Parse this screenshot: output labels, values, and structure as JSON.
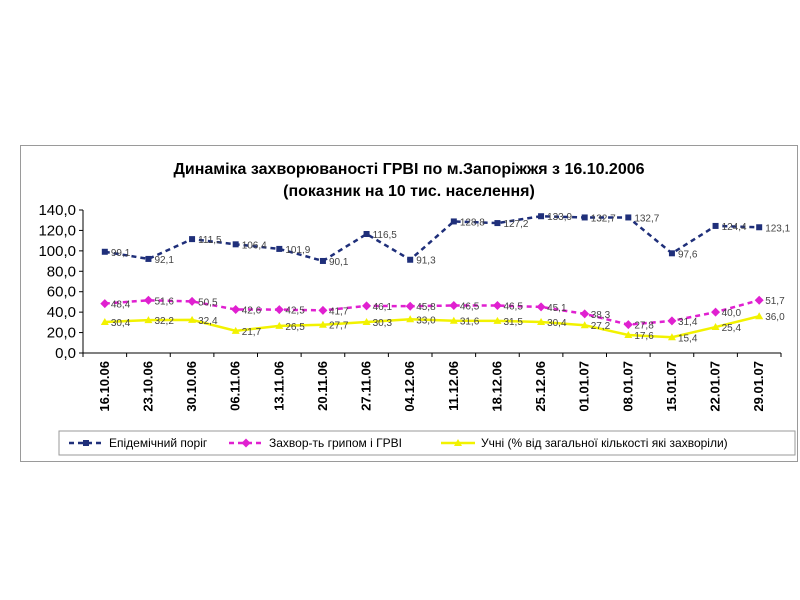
{
  "chart_data": {
    "type": "line",
    "title": "Динаміка захворюваності ГРВІ по м.Запоріжжя з 16.10.2006",
    "subtitle": "(показник на 10 тис. населення)",
    "categories": [
      "16.10.06",
      "23.10.06",
      "30.10.06",
      "06.11.06",
      "13.11.06",
      "20.11.06",
      "27.11.06",
      "04.12.06",
      "11.12.06",
      "18.12.06",
      "25.12.06",
      "01.01.07",
      "08.01.07",
      "15.01.07",
      "22.01.07",
      "29.01.07"
    ],
    "ylim": [
      0,
      140
    ],
    "yticks": [
      "0,0",
      "20,0",
      "40,0",
      "60,0",
      "80,0",
      "100,0",
      "120,0",
      "140,0"
    ],
    "legend_position": "bottom",
    "series": [
      {
        "name": "Епідемічний поріг",
        "color": "#1f2f7a",
        "style": "dashed",
        "marker": "square",
        "values": [
          99.1,
          92.1,
          111.5,
          106.4,
          101.9,
          90.1,
          116.5,
          91.3,
          128.8,
          127.2,
          133.9,
          132.7,
          132.7,
          97.6,
          124.4,
          123.1
        ],
        "labels": [
          "99,1",
          "92,1",
          "111,5",
          "106,4",
          "101,9",
          "90,1",
          "116,5",
          "91,3",
          "128,8",
          "127,2",
          "133,9",
          "132,7",
          "132,7",
          "97,6",
          "124,4",
          "123,1"
        ]
      },
      {
        "name": "Захвор-ть грипом і ГРВІ",
        "color": "#e020d0",
        "style": "dashed",
        "marker": "diamond",
        "values": [
          48.4,
          51.6,
          50.5,
          42.6,
          42.5,
          41.7,
          46.1,
          45.8,
          46.5,
          46.5,
          45.1,
          38.3,
          27.8,
          31.4,
          40.0,
          51.7
        ],
        "labels": [
          "48,4",
          "51,6",
          "50,5",
          "42,6",
          "42,5",
          "41,7",
          "46,1",
          "45,8",
          "46,5",
          "46,5",
          "45,1",
          "38,3",
          "27,8",
          "31,4",
          "40,0",
          "51,7"
        ]
      },
      {
        "name": "Учні (% від загальної кількості які захворіли)",
        "color": "#f2f200",
        "style": "solid",
        "marker": "triangle",
        "values": [
          30.4,
          32.2,
          32.4,
          21.7,
          26.5,
          27.7,
          30.3,
          33.0,
          31.6,
          31.5,
          30.4,
          27.2,
          17.6,
          15.4,
          25.4,
          36.0
        ],
        "labels": [
          "30,4",
          "32,2",
          "32,4",
          "21,7",
          "26,5",
          "27,7",
          "30,3",
          "33,0",
          "31,6",
          "31,5",
          "30,4",
          "27,2",
          "17,6",
          "15,4",
          "25,4",
          "36,0"
        ]
      }
    ]
  }
}
